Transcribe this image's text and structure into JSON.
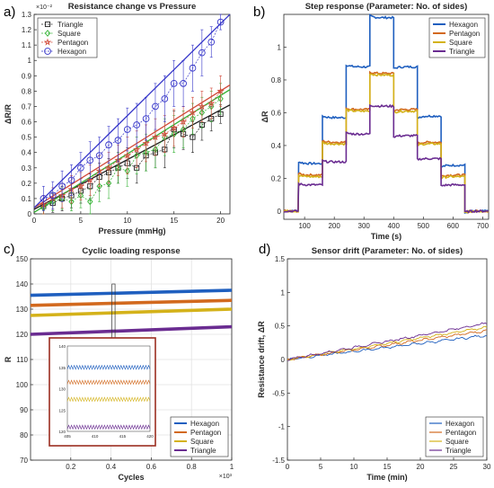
{
  "chart_data": [
    {
      "panel_label": "a)",
      "type": "line",
      "title": "Resistance change vs Pressure",
      "xlabel": "Pressure (mmHg)",
      "ylabel": "ΔR/R",
      "y_exponent": "×10⁻²",
      "xlim": [
        0,
        21
      ],
      "ylim": [
        0,
        1.3
      ],
      "xticks": [
        0,
        5,
        10,
        15,
        20
      ],
      "yticks": [
        0,
        0.1,
        0.2,
        0.3,
        0.4,
        0.5,
        0.6,
        0.7,
        0.8,
        0.9,
        1,
        1.1,
        1.2,
        1.3
      ],
      "legend_position": "top-left",
      "x": [
        1,
        2,
        3,
        4,
        5,
        6,
        7,
        8,
        9,
        10,
        11,
        12,
        13,
        14,
        15,
        16,
        17,
        18,
        19,
        20
      ],
      "series": [
        {
          "name": "Triangle",
          "color": "#202020",
          "marker": "square",
          "values": [
            0.05,
            0.07,
            0.1,
            0.12,
            0.15,
            0.18,
            0.24,
            0.27,
            0.3,
            0.33,
            0.3,
            0.38,
            0.4,
            0.42,
            0.55,
            0.52,
            0.5,
            0.58,
            0.62,
            0.65
          ],
          "errors": [
            0.05,
            0.06,
            0.08,
            0.08,
            0.08,
            0.08,
            0.09,
            0.09,
            0.1,
            0.1,
            0.1,
            0.1,
            0.1,
            0.12,
            0.12,
            0.1,
            0.1,
            0.1,
            0.08,
            0.06
          ],
          "fit": [
            [
              0,
              0.03
            ],
            [
              21,
              0.71
            ]
          ]
        },
        {
          "name": "Square",
          "color": "#33b233",
          "marker": "diamond",
          "values": [
            0.04,
            0.08,
            0.1,
            0.08,
            0.12,
            0.08,
            0.18,
            0.2,
            0.3,
            0.28,
            0.38,
            0.4,
            0.42,
            0.5,
            0.52,
            0.55,
            0.62,
            0.66,
            0.7,
            0.75
          ],
          "errors": [
            0.04,
            0.06,
            0.07,
            0.06,
            0.08,
            0.08,
            0.1,
            0.1,
            0.1,
            0.1,
            0.12,
            0.12,
            0.12,
            0.12,
            0.12,
            0.12,
            0.1,
            0.1,
            0.1,
            0.1
          ],
          "fit": [
            [
              0,
              0.01
            ],
            [
              21,
              0.81
            ]
          ]
        },
        {
          "name": "Pentagon",
          "color": "#d14a3a",
          "marker": "star",
          "values": [
            0.06,
            0.1,
            0.12,
            0.16,
            0.18,
            0.22,
            0.28,
            0.3,
            0.35,
            0.38,
            0.42,
            0.46,
            0.5,
            0.52,
            0.56,
            0.6,
            0.66,
            0.7,
            0.72,
            0.8
          ],
          "errors": [
            0.06,
            0.07,
            0.08,
            0.09,
            0.09,
            0.1,
            0.1,
            0.1,
            0.1,
            0.12,
            0.12,
            0.12,
            0.12,
            0.12,
            0.12,
            0.1,
            0.1,
            0.1,
            0.1,
            0.1
          ],
          "fit": [
            [
              0,
              0.04
            ],
            [
              21,
              0.84
            ]
          ]
        },
        {
          "name": "Hexagon",
          "color": "#3535c9",
          "marker": "circle",
          "values": [
            0.1,
            0.12,
            0.18,
            0.22,
            0.3,
            0.35,
            0.38,
            0.45,
            0.48,
            0.55,
            0.58,
            0.62,
            0.7,
            0.75,
            0.85,
            0.85,
            0.95,
            1.05,
            1.12,
            1.25
          ],
          "errors": [
            0.08,
            0.09,
            0.1,
            0.1,
            0.1,
            0.12,
            0.12,
            0.12,
            0.14,
            0.14,
            0.14,
            0.14,
            0.15,
            0.15,
            0.15,
            0.15,
            0.15,
            0.15,
            0.1,
            0.05
          ],
          "fit": [
            [
              0,
              0.04
            ],
            [
              21,
              1.3
            ]
          ]
        }
      ]
    },
    {
      "panel_label": "b)",
      "type": "line",
      "title": "Step response (Parameter: No. of sides)",
      "xlabel": "Time (s)",
      "ylabel": "ΔR",
      "xlim": [
        30,
        720
      ],
      "ylim": [
        -0.05,
        1.2
      ],
      "xticks": [
        100,
        200,
        300,
        400,
        500,
        600,
        700
      ],
      "yticks": [
        0,
        0.2,
        0.4,
        0.6,
        0.8,
        1
      ],
      "legend_position": "top-right",
      "segment_times": [
        30,
        80,
        160,
        240,
        320,
        400,
        480,
        560,
        640,
        720
      ],
      "series": [
        {
          "name": "Hexagon",
          "color": "#1f5fbf",
          "values": [
            0,
            0.29,
            0.57,
            0.88,
            1.18,
            0.88,
            0.58,
            0.28,
            0
          ]
        },
        {
          "name": "Pentagon",
          "color": "#d2691e",
          "values": [
            0,
            0.22,
            0.42,
            0.62,
            0.84,
            0.62,
            0.42,
            0.22,
            0
          ]
        },
        {
          "name": "Square",
          "color": "#d4b21a",
          "values": [
            0,
            0.21,
            0.41,
            0.61,
            0.83,
            0.61,
            0.41,
            0.21,
            0
          ]
        },
        {
          "name": "Triangle",
          "color": "#6a2c91",
          "values": [
            0,
            0.16,
            0.3,
            0.47,
            0.64,
            0.46,
            0.32,
            0.16,
            0
          ]
        }
      ]
    },
    {
      "panel_label": "c)",
      "type": "line",
      "title": "Cyclic loading response",
      "xlabel": "Cycles",
      "ylabel": "R",
      "x_exponent": "×10³",
      "xlim": [
        0,
        1
      ],
      "ylim": [
        70,
        150
      ],
      "xticks": [
        0.2,
        0.4,
        0.6,
        0.8,
        1
      ],
      "yticks": [
        70,
        80,
        90,
        100,
        110,
        120,
        130,
        140,
        150
      ],
      "legend_position": "bottom-right",
      "series": [
        {
          "name": "Hexagon",
          "color": "#1f5fbf",
          "start": 135.5,
          "end": 137.5
        },
        {
          "name": "Pentagon",
          "color": "#d2691e",
          "start": 131.5,
          "end": 133.5
        },
        {
          "name": "Square",
          "color": "#d4b21a",
          "start": 127.5,
          "end": 130
        },
        {
          "name": "Triangle",
          "color": "#6a2c91",
          "start": 120,
          "end": 123
        }
      ],
      "inset": {
        "xlim": [
          405,
          420
        ],
        "ylim": [
          120,
          140
        ],
        "xticks": [
          405,
          410,
          415,
          420
        ],
        "yticks": [
          120,
          125,
          130,
          135,
          140
        ],
        "levels": [
          {
            "series": "Hexagon",
            "y": 135
          },
          {
            "series": "Pentagon",
            "y": 131.5
          },
          {
            "series": "Square",
            "y": 127.5
          },
          {
            "series": "Triangle",
            "y": 121
          }
        ]
      }
    },
    {
      "panel_label": "d)",
      "type": "line",
      "title": "Sensor drift (Parameter: No. of sides)",
      "xlabel": "Time (min)",
      "ylabel": "Resistance drift, ΔR",
      "xlim": [
        0,
        30
      ],
      "ylim": [
        -1.5,
        1.5
      ],
      "xticks": [
        0,
        5,
        10,
        15,
        20,
        25,
        30
      ],
      "yticks": [
        -1.5,
        -1,
        -0.5,
        0,
        0.5,
        1,
        1.5
      ],
      "legend_position": "bottom-right",
      "series": [
        {
          "name": "Hexagon",
          "color": "#1f5fbf",
          "end": 0.36
        },
        {
          "name": "Pentagon",
          "color": "#d2691e",
          "end": 0.43
        },
        {
          "name": "Square",
          "color": "#d4b21a",
          "end": 0.48
        },
        {
          "name": "Triangle",
          "color": "#6a2c91",
          "end": 0.54
        }
      ]
    }
  ]
}
